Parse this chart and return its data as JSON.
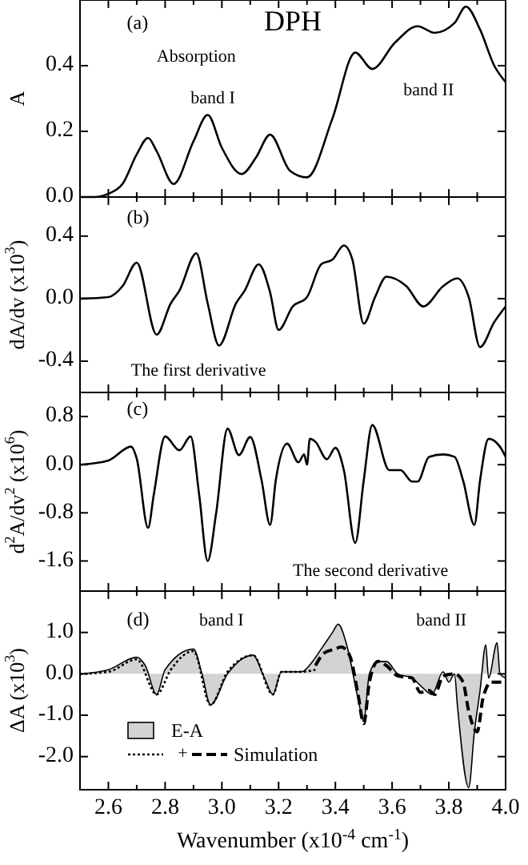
{
  "chart_data": [
    {
      "type": "line",
      "title": "DPH",
      "ylabel": "A",
      "annotations": [
        "(a)",
        "Absorption",
        "band I",
        "band II"
      ],
      "xlim": [
        2.5,
        4.0
      ],
      "ylim": [
        0,
        0.6
      ],
      "yticks": [
        {
          "value": 0,
          "label": "0.0"
        },
        0.2,
        0.4
      ],
      "xticks": [
        {
          "value": 2.5,
          "label": null
        },
        {
          "value": 2.6,
          "label": null
        },
        {
          "value": 2.7,
          "label": null
        },
        {
          "value": 2.8,
          "label": null
        },
        {
          "value": 2.9,
          "label": null
        },
        {
          "value": 3.0,
          "label": null
        },
        {
          "value": 3.1,
          "label": null
        },
        {
          "value": 3.2,
          "label": null
        },
        {
          "value": 3.3,
          "label": null
        },
        {
          "value": 3.4,
          "label": null
        },
        {
          "value": 3.5,
          "label": null
        },
        {
          "value": 3.6,
          "label": null
        },
        {
          "value": 3.7,
          "label": null
        },
        {
          "value": 3.8,
          "label": null
        },
        {
          "value": 3.9,
          "label": null
        },
        {
          "value": 4.0,
          "label": null
        }
      ],
      "tick_labels": "y",
      "legend": false,
      "series": [
        {
          "color": "#000000",
          "x": [
            2.5,
            2.55,
            2.6,
            2.65,
            2.7,
            2.74,
            2.77,
            2.83,
            2.9,
            2.95,
            3.0,
            3.07,
            3.12,
            3.17,
            3.24,
            3.3,
            3.39,
            3.47,
            3.53,
            3.61,
            3.69,
            3.75,
            3.82,
            3.86,
            3.91,
            3.96,
            4.0
          ],
          "values": [
            0.0,
            0.0,
            0.01,
            0.04,
            0.13,
            0.18,
            0.14,
            0.04,
            0.17,
            0.25,
            0.15,
            0.07,
            0.12,
            0.19,
            0.08,
            0.06,
            0.24,
            0.44,
            0.39,
            0.47,
            0.52,
            0.5,
            0.53,
            0.58,
            0.51,
            0.4,
            0.35
          ]
        }
      ]
    },
    {
      "type": "line",
      "ylabel": "dA/dv (x10$^{3}$)",
      "annotations": [
        "(b)",
        "The first derivative"
      ],
      "xlim": [
        2.5,
        4.0
      ],
      "ylim": [
        -0.6,
        0.65
      ],
      "yticks": [
        -0.4,
        {
          "value": 0,
          "label": "0.0"
        },
        0.4
      ],
      "xticks": [
        {
          "value": 2.5,
          "label": null
        },
        {
          "value": 2.6,
          "label": null
        },
        {
          "value": 2.7,
          "label": null
        },
        {
          "value": 2.8,
          "label": null
        },
        {
          "value": 2.9,
          "label": null
        },
        {
          "value": 3.0,
          "label": null
        },
        {
          "value": 3.1,
          "label": null
        },
        {
          "value": 3.2,
          "label": null
        },
        {
          "value": 3.3,
          "label": null
        },
        {
          "value": 3.4,
          "label": null
        },
        {
          "value": 3.5,
          "label": null
        },
        {
          "value": 3.6,
          "label": null
        },
        {
          "value": 3.7,
          "label": null
        },
        {
          "value": 3.8,
          "label": null
        },
        {
          "value": 3.9,
          "label": null
        },
        {
          "value": 4.0,
          "label": null
        }
      ],
      "tick_labels": "y",
      "legend": false,
      "series": [
        {
          "color": "#000000",
          "x": [
            2.5,
            2.6,
            2.65,
            2.7,
            2.77,
            2.82,
            2.85,
            2.91,
            2.95,
            2.99,
            3.05,
            3.08,
            3.13,
            3.17,
            3.2,
            3.25,
            3.3,
            3.35,
            3.39,
            3.43,
            3.46,
            3.5,
            3.54,
            3.58,
            3.65,
            3.71,
            3.78,
            3.83,
            3.87,
            3.91,
            3.96,
            4.0
          ],
          "values": [
            0.0,
            0.01,
            0.08,
            0.23,
            -0.23,
            -0.03,
            0.05,
            0.29,
            -0.03,
            -0.3,
            -0.03,
            0.05,
            0.22,
            0.04,
            -0.2,
            -0.05,
            0.01,
            0.22,
            0.25,
            0.34,
            0.25,
            -0.16,
            0.01,
            0.14,
            0.08,
            -0.05,
            0.08,
            0.13,
            0.01,
            -0.31,
            -0.15,
            -0.05
          ]
        }
      ]
    },
    {
      "type": "line",
      "ylabel": "d$^{2}$A/dv$^{2}$ (x10$^{6}$)",
      "annotations": [
        "(c)",
        "The second derivative"
      ],
      "xlim": [
        2.5,
        4.0
      ],
      "ylim": [
        -2.1,
        1.2
      ],
      "yticks": [
        -1.6,
        -0.8,
        {
          "value": 0,
          "label": "0.0"
        },
        0.8
      ],
      "xticks": [
        {
          "value": 2.5,
          "label": null
        },
        {
          "value": 2.6,
          "label": null
        },
        {
          "value": 2.7,
          "label": null
        },
        {
          "value": 2.8,
          "label": null
        },
        {
          "value": 2.9,
          "label": null
        },
        {
          "value": 3.0,
          "label": null
        },
        {
          "value": 3.1,
          "label": null
        },
        {
          "value": 3.2,
          "label": null
        },
        {
          "value": 3.3,
          "label": null
        },
        {
          "value": 3.4,
          "label": null
        },
        {
          "value": 3.5,
          "label": null
        },
        {
          "value": 3.6,
          "label": null
        },
        {
          "value": 3.7,
          "label": null
        },
        {
          "value": 3.8,
          "label": null
        },
        {
          "value": 3.9,
          "label": null
        },
        {
          "value": 4.0,
          "label": null
        }
      ],
      "tick_labels": "y",
      "legend": false,
      "series": [
        {
          "color": "#000000",
          "x": [
            2.5,
            2.6,
            2.68,
            2.7,
            2.74,
            2.76,
            2.8,
            2.85,
            2.89,
            2.92,
            2.95,
            2.98,
            3.02,
            3.06,
            3.1,
            3.14,
            3.17,
            3.19,
            3.23,
            3.27,
            3.29,
            3.3,
            3.31,
            3.33,
            3.37,
            3.4,
            3.43,
            3.47,
            3.5,
            3.53,
            3.59,
            3.63,
            3.67,
            3.69,
            3.73,
            3.78,
            3.82,
            3.85,
            3.89,
            3.91,
            3.94,
            3.98,
            4.0
          ],
          "values": [
            0.0,
            0.07,
            0.3,
            0.1,
            -1.05,
            -0.5,
            0.47,
            0.24,
            0.47,
            -0.5,
            -1.6,
            -0.8,
            0.6,
            0.16,
            0.46,
            -0.26,
            -1.0,
            -0.26,
            0.35,
            0.04,
            0.17,
            0.0,
            0.43,
            0.38,
            0.09,
            0.28,
            -0.09,
            -1.3,
            -0.26,
            0.66,
            -0.09,
            -0.09,
            -0.28,
            -0.28,
            0.13,
            0.17,
            0.13,
            -0.26,
            -1.0,
            -0.26,
            0.43,
            0.3,
            0.13
          ]
        }
      ]
    },
    {
      "type": "line",
      "ylabel": "ΔA (x10$^{3}$)",
      "xlabel": "Wavenumber (x10$^{-4}$ cm$^{-1}$)",
      "annotations": [
        "(d)",
        "band I",
        "band II",
        "+"
      ],
      "xlim": [
        2.5,
        4.0
      ],
      "ylim": [
        -2.8,
        2.0
      ],
      "yticks": [
        {
          "value": -2,
          "label": "-2.0"
        },
        {
          "value": -1,
          "label": "-1.0"
        },
        {
          "value": 0,
          "label": "0.0"
        },
        {
          "value": 1,
          "label": "1.0"
        }
      ],
      "xticks": [
        {
          "value": 2.5,
          "label": null
        },
        {
          "value": 2.6,
          "label": "2.6"
        },
        {
          "value": 2.7,
          "label": null
        },
        {
          "value": 2.8,
          "label": "2.8"
        },
        {
          "value": 2.9,
          "label": null
        },
        {
          "value": 3.0,
          "label": "3.0"
        },
        {
          "value": 3.1,
          "label": null
        },
        {
          "value": 3.2,
          "label": "3.2"
        },
        {
          "value": 3.3,
          "label": null
        },
        {
          "value": 3.4,
          "label": "3.4"
        },
        {
          "value": 3.5,
          "label": null
        },
        {
          "value": 3.6,
          "label": "3.6"
        },
        {
          "value": 3.7,
          "label": null
        },
        {
          "value": 3.8,
          "label": "3.8"
        },
        {
          "value": 3.9,
          "label": null
        },
        {
          "value": 4.0,
          "label": "4.0"
        }
      ],
      "legend": "bottom left",
      "series": [
        {
          "type": "area",
          "name": "E-A",
          "color": "#d3d3d3",
          "x": [
            2.5,
            2.6,
            2.7,
            2.73,
            2.77,
            2.8,
            2.9,
            2.93,
            2.96,
            3.02,
            3.11,
            3.15,
            3.18,
            3.21,
            3.28,
            3.32,
            3.35,
            3.39,
            3.41,
            3.44,
            3.48,
            3.5,
            3.52,
            3.55,
            3.58,
            3.62,
            3.67,
            3.71,
            3.74,
            3.78,
            3.8,
            3.82,
            3.83,
            3.87,
            3.89,
            3.91,
            3.93,
            3.94,
            3.97,
            3.98,
            4.0
          ],
          "values": [
            0.0,
            0.1,
            0.4,
            0.2,
            -0.5,
            0.1,
            0.6,
            0.0,
            -0.75,
            0.0,
            0.45,
            -0.1,
            -0.5,
            0.05,
            0.05,
            0.3,
            0.6,
            1.0,
            1.2,
            0.7,
            -0.6,
            -1.15,
            0.0,
            0.3,
            0.3,
            0.0,
            -0.1,
            -0.35,
            -0.5,
            0.05,
            -0.2,
            0.0,
            -0.75,
            -2.75,
            -1.4,
            -0.4,
            0.7,
            -0.1,
            0.75,
            0.0,
            -0.1
          ]
        },
        {
          "line_style": "dotted",
          "color": "#000000",
          "x": [
            2.5,
            2.6,
            2.7,
            2.77,
            2.82,
            2.9,
            2.96,
            3.02,
            3.11,
            3.18,
            3.21,
            3.28,
            3.33
          ],
          "values": [
            0.0,
            0.05,
            0.35,
            -0.5,
            0.1,
            0.55,
            -0.75,
            0.05,
            0.45,
            -0.5,
            0.05,
            0.05,
            0.1
          ]
        },
        {
          "line_style": "dashed",
          "name": "Simulation",
          "color": "#000000",
          "x": [
            3.33,
            3.36,
            3.4,
            3.42,
            3.45,
            3.48,
            3.5,
            3.52,
            3.55,
            3.58,
            3.62,
            3.67,
            3.7,
            3.73,
            3.75,
            3.78,
            3.82,
            3.85,
            3.87,
            3.9,
            3.92,
            3.95,
            4.0
          ],
          "values": [
            0.2,
            0.5,
            0.6,
            0.65,
            0.45,
            -0.5,
            -1.2,
            -0.2,
            0.3,
            0.2,
            -0.05,
            -0.1,
            -0.45,
            -0.4,
            -0.5,
            -0.05,
            0.0,
            -0.2,
            -0.9,
            -1.4,
            -0.6,
            -0.2,
            -0.2
          ]
        }
      ]
    }
  ]
}
